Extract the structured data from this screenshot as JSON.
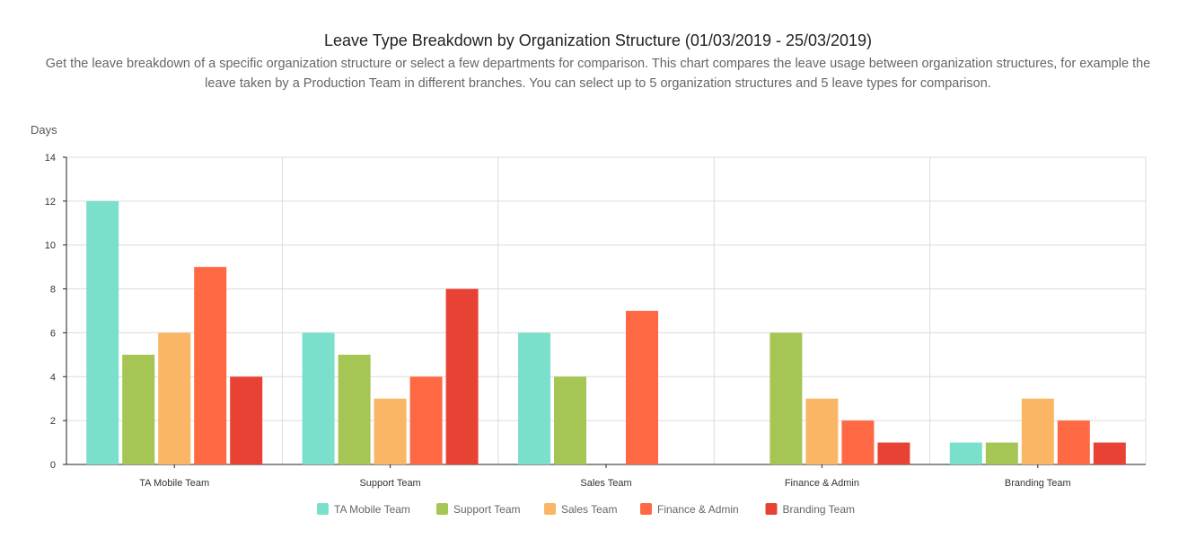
{
  "header": {
    "title": "Leave Type Breakdown by Organization Structure (01/03/2019 - 25/03/2019)",
    "description": "Get the leave breakdown of a specific organization structure or select a few departments for comparison. This chart compares the leave usage between organization structures, for example the leave taken by a Production Team in different branches. You can select up to 5 organization structures and 5 leave types for comparison."
  },
  "chart_data": {
    "type": "bar",
    "title": "Leave Type Breakdown by Organization Structure (01/03/2019 - 25/03/2019)",
    "ylabel": "Days",
    "xlabel": "",
    "ylim": [
      0,
      14
    ],
    "yticks": [
      0,
      2,
      4,
      6,
      8,
      10,
      12,
      14
    ],
    "grid": true,
    "legend_position": "bottom",
    "categories": [
      "TA Mobile Team",
      "Support Team",
      "Sales Team",
      "Finance & Admin",
      "Branding Team"
    ],
    "series": [
      {
        "name": "TA Mobile Team",
        "color": "#7ADFCB",
        "values": [
          12,
          6,
          6,
          0,
          1
        ]
      },
      {
        "name": "Support Team",
        "color": "#A5C555",
        "values": [
          5,
          5,
          4,
          6,
          1
        ]
      },
      {
        "name": "Sales Team",
        "color": "#FAB665",
        "values": [
          6,
          3,
          0,
          3,
          3
        ]
      },
      {
        "name": "Finance & Admin",
        "color": "#FE6944",
        "values": [
          9,
          4,
          7,
          2,
          2
        ]
      },
      {
        "name": "Branding Team",
        "color": "#E84234",
        "values": [
          4,
          8,
          0,
          1,
          1
        ]
      }
    ]
  }
}
